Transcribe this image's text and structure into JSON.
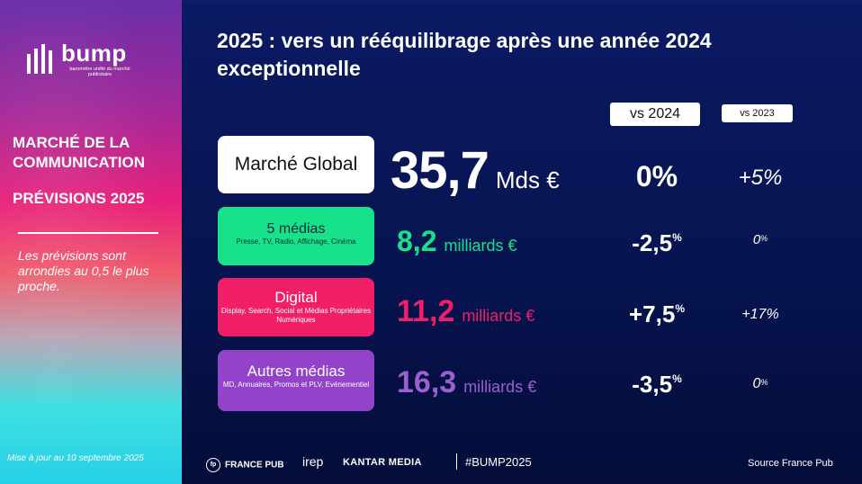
{
  "left_panel": {
    "logo_word": "bump",
    "logo_sub": "baromètre unifié du marché publicitaire",
    "title_line1": "MARCHÉ DE LA",
    "title_line2": "COMMUNICATION",
    "subtitle": "PRÉVISIONS 2025",
    "note": "Les prévisions sont arrondies au 0,5 le plus proche.",
    "update": "Mise à jour au 10 septembre 2025"
  },
  "title": "2025 : vers un rééquilibrage après une année 2024 exceptionnelle",
  "columns": {
    "vs2024": "vs 2024",
    "vs2023": "vs 2023"
  },
  "rows": {
    "global": {
      "name": "Marché Global",
      "value": "35,7",
      "unit": "Mds €",
      "vs2024": "0%",
      "vs2023": "+5%"
    },
    "medias5": {
      "name": "5 médias",
      "desc": "Presse, TV, Radio, Affichage, Cinéma",
      "value": "8,2",
      "unit": "milliards €",
      "vs2024": "-2,5",
      "vs2023": "0"
    },
    "digital": {
      "name": "Digital",
      "desc": "Display, Search, Social et Médias Propriétaires Numériques",
      "value": "11,2",
      "unit": "milliards €",
      "vs2024": "+7,5",
      "vs2023": "+17%"
    },
    "autres": {
      "name": "Autres médias",
      "desc": "MD, Annuaires, Promos et PLV, Evénementiel",
      "value": "16,3",
      "unit": "milliards €",
      "vs2024": "-3,5",
      "vs2023": "0"
    }
  },
  "percent_sign": "%",
  "footer": {
    "logo1_mark": "fp",
    "logo1": "FRANCE PUB",
    "logo2": "irep",
    "logo3": "KANTAR MEDIA",
    "hashtag": "#BUMP2025",
    "source": "Source France Pub"
  },
  "colors": {
    "green": "#17e28a",
    "pink": "#f01f68",
    "purple": "#9343c9",
    "navy": "#071451"
  }
}
